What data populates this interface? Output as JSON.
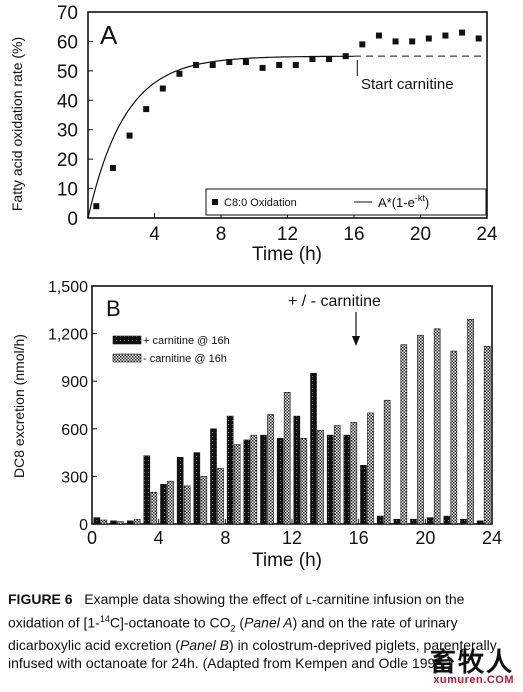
{
  "chart_data": [
    {
      "type": "scatter",
      "panel_label": "A",
      "ylabel": "Fatty acid oxidation rate (%)",
      "xlabel": "Time (h)",
      "xlim": [
        0,
        24
      ],
      "ylim": [
        0,
        70
      ],
      "xticks": [
        4,
        8,
        12,
        16,
        20,
        24
      ],
      "yticks": [
        0,
        10,
        20,
        30,
        40,
        50,
        60,
        70
      ],
      "legend": [
        "C8:0 Oxidation",
        "A*(1-e"
      ],
      "legend_sup": "-kt",
      "legend_close": ")",
      "legend_placement": "bottom-right",
      "annotation": "Start carnitine",
      "plateau": 55,
      "rate_k": 0.45,
      "series": [
        {
          "name": "C8:0 Oxidation",
          "x": [
            0.5,
            1.5,
            2.5,
            3.5,
            4.5,
            5.5,
            6.5,
            7.5,
            8.5,
            9.5,
            10.5,
            11.5,
            12.5,
            13.5,
            14.5,
            15.5,
            16.5,
            17.5,
            18.5,
            19.5,
            20.5,
            21.5,
            22.5,
            23.5
          ],
          "y": [
            4,
            17,
            28,
            37,
            44,
            49,
            52,
            52,
            53,
            53,
            51,
            52,
            52,
            54,
            54,
            55,
            59,
            62,
            60,
            60,
            61,
            62,
            63,
            61
          ]
        }
      ]
    },
    {
      "type": "bar",
      "panel_label": "B",
      "ylabel": "DC8 excretion (nmol/h)",
      "xlabel": "Time (h)",
      "xlim": [
        0,
        24
      ],
      "ylim": [
        0,
        1500
      ],
      "xticks": [
        0,
        4,
        8,
        12,
        16,
        20,
        24
      ],
      "yticks": [
        0,
        300,
        600,
        900,
        1200,
        1500
      ],
      "ytick_labels": [
        "0",
        "300",
        "600",
        "900",
        "1,200",
        "1,500"
      ],
      "annotation": "+ / - carnitine",
      "legend_placement": "top-left",
      "x": [
        1,
        2,
        3,
        4,
        5,
        6,
        7,
        8,
        9,
        10,
        11,
        12,
        13,
        14,
        15,
        16,
        17,
        18,
        19,
        20,
        21,
        22,
        23,
        24
      ],
      "series": [
        {
          "name": "+ carnitine @ 16h",
          "values": [
            40,
            20,
            20,
            430,
            250,
            420,
            450,
            600,
            680,
            530,
            560,
            540,
            680,
            950,
            560,
            560,
            370,
            50,
            30,
            30,
            40,
            50,
            30,
            20
          ]
        },
        {
          "name": "- carnitine @ 16h",
          "values": [
            25,
            15,
            30,
            200,
            270,
            240,
            300,
            350,
            500,
            560,
            690,
            830,
            540,
            590,
            620,
            640,
            700,
            780,
            1130,
            1190,
            1230,
            1090,
            1290,
            1120
          ]
        }
      ]
    }
  ],
  "caption": {
    "figure_label": "FIGURE 6",
    "text_1": "Example data showing the effect of ",
    "smallcap_1": "L",
    "text_2": "-carnitine infusion on the oxidation of [1-",
    "sup_1": "14",
    "text_3": "C]-octanoate to CO",
    "sub_1": "2",
    "text_4": " (",
    "italic_1": "Panel A",
    "text_5": ") and on the rate of urinary dicarboxylic acid excretion (",
    "italic_2": "Panel B",
    "text_6": ") in colostrum-deprived piglets, parenterally infused with octanoate for 24h. (Adapted from Kempen and Odle 1995.)"
  },
  "watermark": {
    "chinese": "畜牧人",
    "url": "xumuren.COM"
  }
}
